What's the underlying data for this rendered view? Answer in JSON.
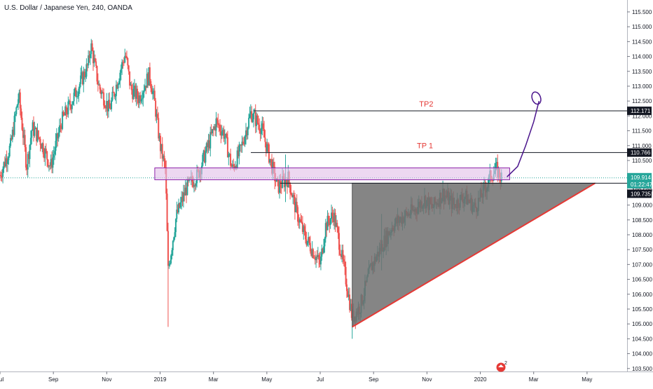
{
  "header": {
    "symbol_line": "U.S. Dollar / Japanese Yen, 240, OANDA"
  },
  "chart_data": {
    "type": "candlestick",
    "title": "U.S. Dollar / Japanese Yen, 240, OANDA",
    "y_axis": {
      "ylim": [
        103.4,
        115.9
      ],
      "ticks": [
        115.5,
        115.0,
        114.5,
        114.0,
        113.5,
        113.0,
        112.5,
        112.0,
        111.5,
        111.0,
        110.5,
        110.0,
        109.5,
        109.0,
        108.5,
        108.0,
        107.5,
        107.0,
        106.5,
        106.0,
        105.5,
        105.0,
        104.5,
        104.0,
        103.5
      ],
      "tick_labels": [
        "115.500",
        "115.000",
        "114.500",
        "114.000",
        "113.500",
        "113.000",
        "112.500",
        "112.000",
        "111.500",
        "111.000",
        "110.500",
        "110.000",
        "109.500",
        "109.000",
        "108.500",
        "108.000",
        "107.500",
        "107.000",
        "106.500",
        "106.000",
        "105.500",
        "105.000",
        "104.500",
        "104.000",
        "103.500"
      ],
      "position": "right"
    },
    "x_axis": {
      "tick_labels": [
        "Jul",
        "Sep",
        "Nov",
        "2019",
        "Mar",
        "May",
        "Jul",
        "Sep",
        "Nov",
        "2020",
        "Mar",
        "May"
      ],
      "tick_index": [
        0,
        2,
        4,
        6,
        8,
        10,
        12,
        14,
        16,
        18,
        20,
        22
      ],
      "range_months": [
        0,
        23.5
      ]
    },
    "price_path": [
      [
        0.0,
        110.0
      ],
      [
        0.4,
        111.0
      ],
      [
        0.7,
        112.7
      ],
      [
        1.0,
        110.3
      ],
      [
        1.2,
        111.6
      ],
      [
        1.5,
        111.2
      ],
      [
        1.9,
        110.3
      ],
      [
        2.3,
        111.8
      ],
      [
        2.8,
        112.7
      ],
      [
        3.3,
        113.7
      ],
      [
        3.4,
        114.4
      ],
      [
        3.7,
        113.0
      ],
      [
        4.1,
        112.2
      ],
      [
        4.5,
        113.5
      ],
      [
        4.7,
        114.1
      ],
      [
        4.9,
        112.9
      ],
      [
        5.2,
        112.6
      ],
      [
        5.6,
        113.4
      ],
      [
        5.8,
        112.4
      ],
      [
        6.0,
        111.0
      ],
      [
        6.2,
        110.2
      ],
      [
        6.3,
        106.8
      ],
      [
        6.6,
        108.6
      ],
      [
        7.0,
        109.6
      ],
      [
        7.4,
        110.0
      ],
      [
        7.8,
        111.0
      ],
      [
        8.1,
        111.8
      ],
      [
        8.4,
        111.4
      ],
      [
        8.7,
        110.2
      ],
      [
        9.0,
        110.8
      ],
      [
        9.4,
        112.1
      ],
      [
        9.8,
        111.6
      ],
      [
        10.1,
        110.6
      ],
      [
        10.4,
        109.6
      ],
      [
        10.8,
        109.9
      ],
      [
        11.1,
        108.8
      ],
      [
        11.4,
        108.0
      ],
      [
        11.7,
        107.5
      ],
      [
        12.0,
        107.0
      ],
      [
        12.2,
        108.3
      ],
      [
        12.5,
        108.7
      ],
      [
        12.7,
        107.8
      ],
      [
        13.0,
        106.3
      ],
      [
        13.2,
        105.2
      ],
      [
        13.5,
        105.6
      ],
      [
        13.9,
        106.9
      ],
      [
        14.3,
        107.6
      ],
      [
        14.7,
        108.3
      ],
      [
        15.1,
        108.6
      ],
      [
        15.5,
        108.8
      ],
      [
        15.9,
        109.2
      ],
      [
        16.2,
        108.9
      ],
      [
        16.6,
        109.4
      ],
      [
        17.0,
        109.0
      ],
      [
        17.4,
        109.3
      ],
      [
        17.8,
        108.9
      ],
      [
        18.2,
        109.6
      ],
      [
        18.4,
        110.0
      ],
      [
        18.6,
        110.2
      ],
      [
        18.8,
        109.9
      ]
    ],
    "spike_wicks": [
      [
        6.3,
        104.9,
        108.0
      ],
      [
        13.2,
        104.5,
        105.6
      ],
      [
        14.3,
        106.8,
        108.7
      ],
      [
        10.7,
        109.1,
        110.7
      ]
    ],
    "annotations": {
      "levels": [
        {
          "label": "TP2",
          "value": 112.171,
          "value_label": "112.171",
          "start_month": 9.5
        },
        {
          "label": "TP 1",
          "value": 110.766,
          "value_label": "110.766",
          "start_month": 9.4
        }
      ],
      "current_price": {
        "value": 109.914,
        "value_label": "109.914",
        "timer": "01:22:47"
      },
      "triangle_base": {
        "value": 109.735,
        "value_label": "109.735"
      },
      "zone": {
        "top": 110.25,
        "bottom": 109.85,
        "start_month": 5.8,
        "end_month": 19.1
      },
      "triangle": [
        [
          13.2,
          109.735
        ],
        [
          13.2,
          104.9
        ],
        [
          22.3,
          109.735
        ]
      ],
      "projection": [
        [
          19.0,
          109.95
        ],
        [
          19.4,
          110.3
        ],
        [
          19.7,
          111.0
        ],
        [
          20.0,
          111.8
        ],
        [
          20.2,
          112.5
        ]
      ],
      "target_loop": {
        "month": 20.1,
        "value": 112.6
      }
    },
    "tv_badge": "2",
    "colors": {
      "up": "#26a69a",
      "down": "#ef5350",
      "zone_fill": "#e1bee7",
      "zone_stroke": "#8e24aa",
      "triangle_fill": "#707070",
      "triangle_edge": "#e53935",
      "projection": "#4a148c",
      "tp_text": "#e53935",
      "level_line": "#131722",
      "cur_line": "#26a69a"
    }
  }
}
